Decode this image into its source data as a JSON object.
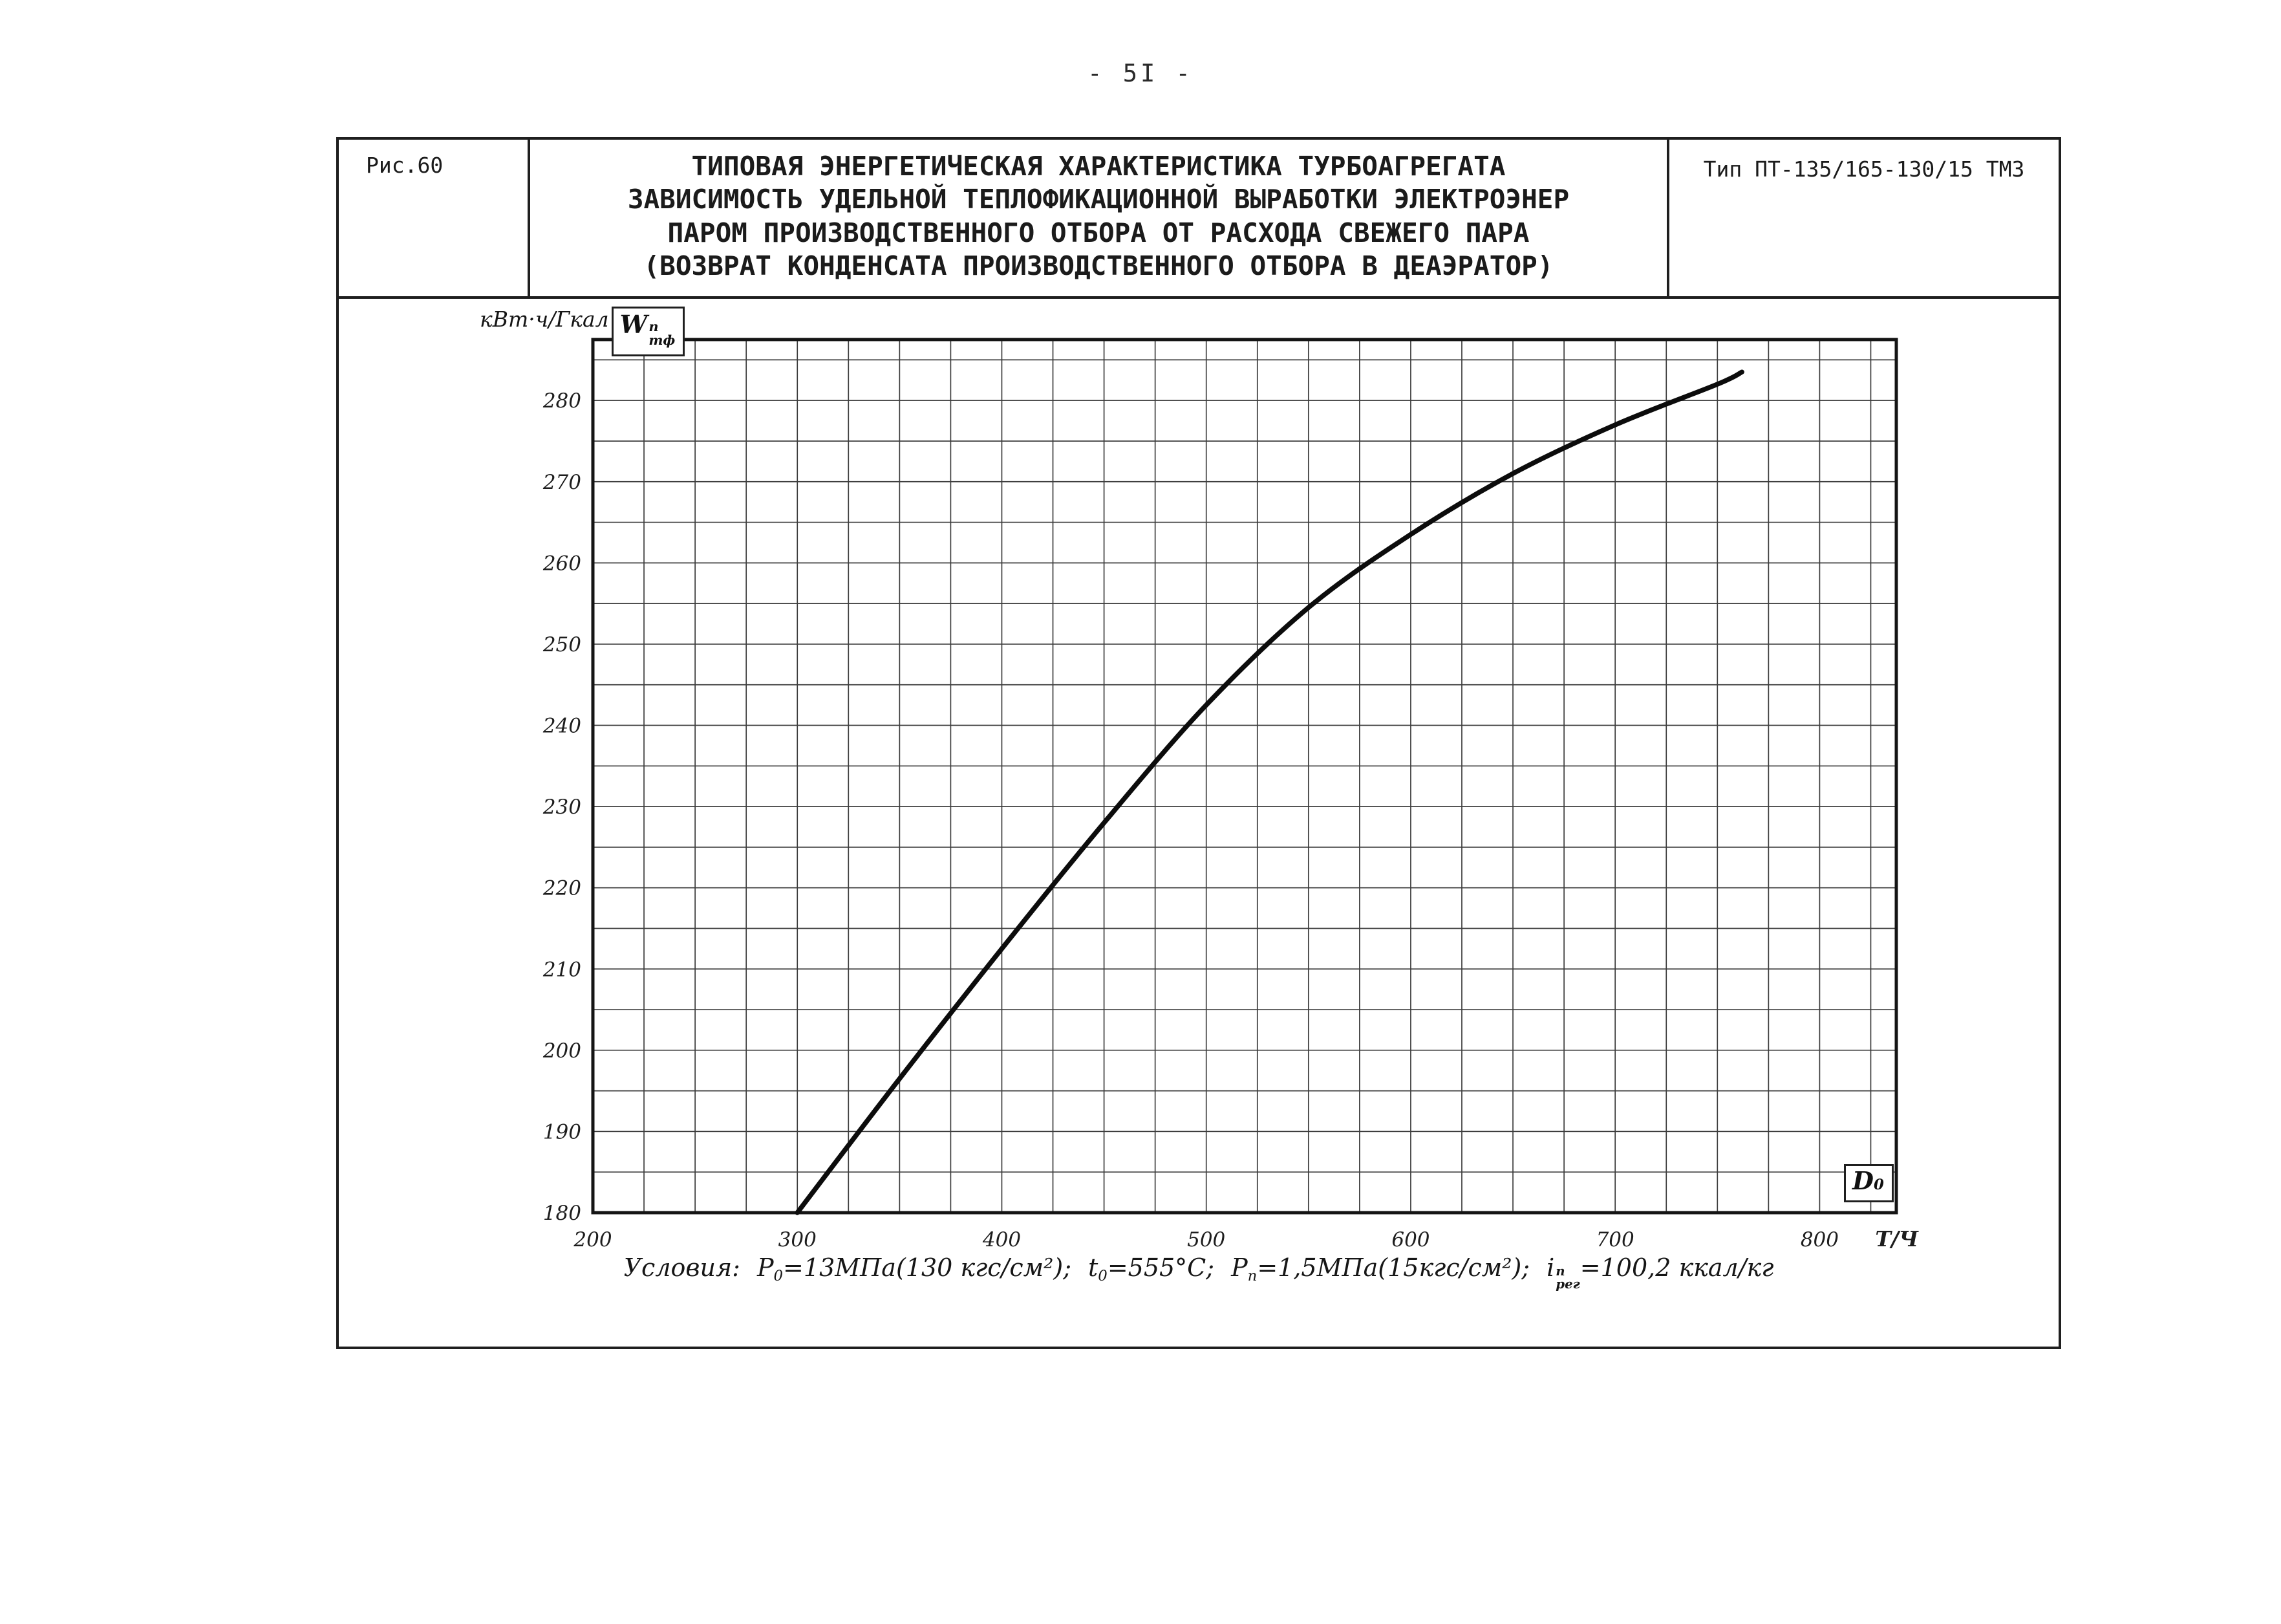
{
  "page": {
    "number": "- 5I -"
  },
  "header": {
    "figure_label": "Рис.60",
    "title_lines": [
      "ТИПОВАЯ ЭНЕРГЕТИЧЕСКАЯ ХАРАКТЕРИСТИКА ТУРБОАГРЕГАТА",
      "ЗАВИСИМОСТЬ УДЕЛЬНОЙ ТЕПЛОФИКАЦИОННОЙ ВЫРАБОТКИ ЭЛЕКТРОЭНЕР",
      "ПАРОМ ПРОИЗВОДСТВЕННОГО ОТБОРА ОТ РАСХОДА СВЕЖЕГО ПАРА",
      "(ВОЗВРАТ КОНДЕНСАТА ПРОИЗВОДСТВЕННОГО ОТБОРА В ДЕАЭРАТОР)"
    ],
    "type_label": "Тип ПТ-135/165-130/15 ТМЗ"
  },
  "chart_data": {
    "type": "line",
    "title": "Зависимость удельной теплофикационной выработки электроэнергии паром производственного отбора от расхода свежего пара",
    "xlabel": "D0, Т/Ч",
    "ylabel": "Wтф(п), кВт·ч/Гкал",
    "x_unit": "Т/Ч",
    "y_unit": "кВт·ч/Гкал",
    "x_symbol": {
      "base": "D",
      "sub": "0"
    },
    "y_symbol": {
      "base": "W",
      "sup": "п",
      "sub": "тф"
    },
    "xlim": [
      200,
      837.5
    ],
    "ylim": [
      180,
      287.5
    ],
    "x_ticks": [
      200,
      300,
      400,
      500,
      600,
      700,
      800
    ],
    "y_ticks": [
      180,
      190,
      200,
      210,
      220,
      230,
      240,
      250,
      260,
      270,
      280
    ],
    "minor_x_step": 25,
    "minor_y_step": 5,
    "grid": true,
    "legend": false,
    "series": [
      {
        "name": "Wтф(п) от D0",
        "x": [
          300,
          350,
          400,
          450,
          500,
          550,
          600,
          650,
          700,
          750,
          762
        ],
        "y": [
          180,
          196.5,
          212.5,
          228,
          242.5,
          254.5,
          263.5,
          271,
          277,
          282,
          283.5
        ]
      }
    ]
  },
  "conditions": {
    "prefix": "Условия:",
    "p1": {
      "base": "P",
      "sub": "0",
      "rest": "=13МПа(130 кгс/см²);"
    },
    "p2": {
      "base": "t",
      "sub": "0",
      "rest": "=555°С;"
    },
    "p3": {
      "base": "P",
      "sub": "п",
      "rest": "=1,5МПа(15кгс/см²);"
    },
    "p4": {
      "base": "i",
      "sup": "п",
      "sub": "рег",
      "rest": "=100,2 ккал/кг"
    }
  }
}
